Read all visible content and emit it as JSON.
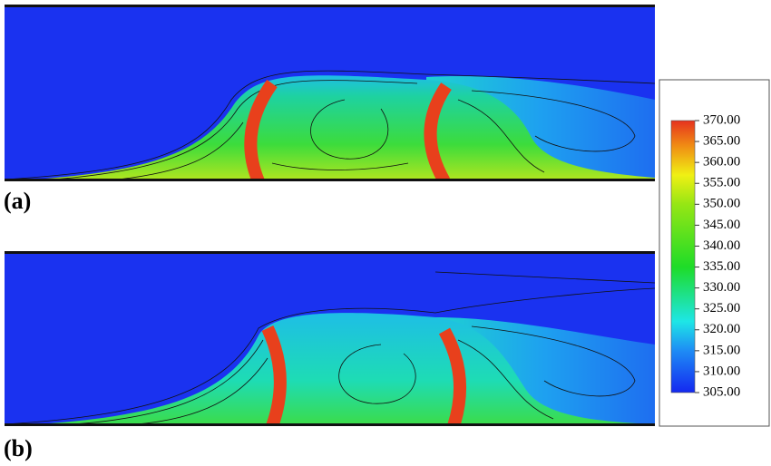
{
  "panels": [
    {
      "label": "(a)"
    },
    {
      "label": "(b)"
    }
  ],
  "colorbar": {
    "ticks": [
      {
        "value": 370,
        "label": "370.00"
      },
      {
        "value": 365,
        "label": "365.00"
      },
      {
        "value": 360,
        "label": "360.00"
      },
      {
        "value": 355,
        "label": "355.00"
      },
      {
        "value": 350,
        "label": "350.00"
      },
      {
        "value": 345,
        "label": "345.00"
      },
      {
        "value": 340,
        "label": "340.00"
      },
      {
        "value": 335,
        "label": "335.00"
      },
      {
        "value": 330,
        "label": "330.00"
      },
      {
        "value": 325,
        "label": "325.00"
      },
      {
        "value": 320,
        "label": "320.00"
      },
      {
        "value": 315,
        "label": "315.00"
      },
      {
        "value": 310,
        "label": "310.00"
      },
      {
        "value": 305,
        "label": "305.00"
      }
    ],
    "colormap": [
      {
        "value": 305,
        "color": "#1428f0"
      },
      {
        "value": 315,
        "color": "#1e8cf5"
      },
      {
        "value": 322,
        "color": "#1ee6e6"
      },
      {
        "value": 335,
        "color": "#1edc28"
      },
      {
        "value": 350,
        "color": "#96e614"
      },
      {
        "value": 357,
        "color": "#f0f014"
      },
      {
        "value": 364,
        "color": "#f08c14"
      },
      {
        "value": 370,
        "color": "#e6321e"
      }
    ]
  }
}
